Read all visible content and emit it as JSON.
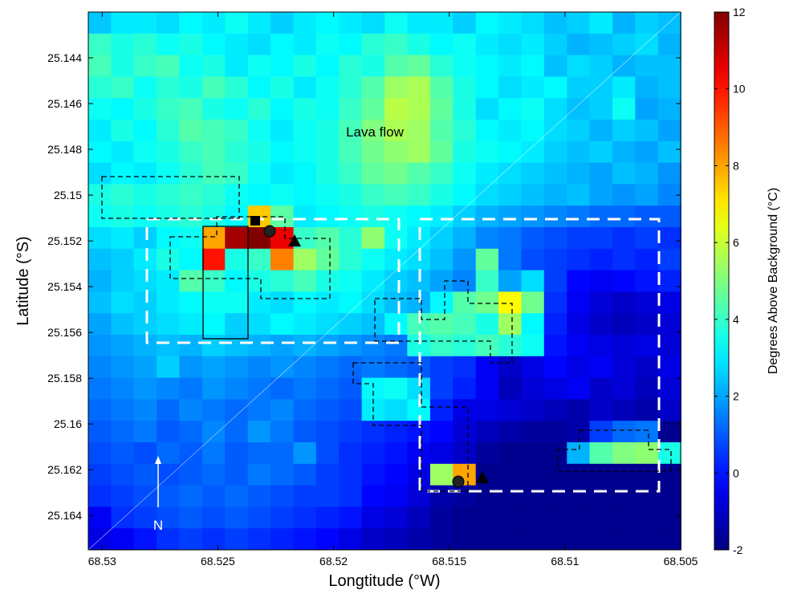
{
  "chart_data": {
    "type": "heatmap",
    "xlabel": "Longtitude (°W)",
    "ylabel": "Latitude (°S)",
    "colorbar_label": "Degrees Above Background (°C)",
    "annotations": [
      "Lava flow",
      "N"
    ],
    "colormap": "jet",
    "xlim": [
      68.5306,
      68.505
    ],
    "ylim": [
      25.142,
      25.1655
    ],
    "xticks": [
      68.53,
      68.525,
      68.52,
      68.515,
      68.51,
      68.505
    ],
    "yticks": [
      25.144,
      25.146,
      25.148,
      25.15,
      25.152,
      25.154,
      25.156,
      25.158,
      25.16,
      25.162,
      25.164
    ],
    "clim": [
      -2,
      12
    ],
    "cticks": [
      -2,
      0,
      2,
      4,
      6,
      8,
      10,
      12
    ],
    "x": [
      68.53011,
      68.52912,
      68.52814,
      68.52715,
      68.52617,
      68.52518,
      68.5242,
      68.52321,
      68.52223,
      68.52124,
      68.52026,
      68.51927,
      68.51829,
      68.5173,
      68.51632,
      68.51533,
      68.51435,
      68.51336,
      68.51238,
      68.51139,
      68.51041,
      68.50942,
      68.50844,
      68.50745,
      68.50647,
      68.50548
    ],
    "y": [
      25.14247,
      25.14341,
      25.14435,
      25.14529,
      25.14623,
      25.14717,
      25.14811,
      25.14905,
      25.14999,
      25.15093,
      25.15187,
      25.15281,
      25.15375,
      25.15469,
      25.15563,
      25.15657,
      25.15751,
      25.15845,
      25.15939,
      25.16033,
      25.16127,
      25.16221,
      25.16315,
      25.16409,
      25.16503
    ],
    "values": [
      [
        2.5,
        3,
        3,
        2.8,
        3.2,
        3,
        3.4,
        3,
        2.6,
        3,
        3.2,
        3,
        2.8,
        3.4,
        3,
        3,
        2.6,
        3.2,
        3,
        2.8,
        2.4,
        2.6,
        3,
        2.2,
        2.6,
        2.4
      ],
      [
        4,
        3.6,
        3.8,
        3.4,
        3.6,
        3.2,
        3,
        2.8,
        3.2,
        3,
        3.4,
        3.2,
        3.8,
        4,
        3.6,
        3.2,
        3.4,
        3,
        2.8,
        3,
        2.6,
        2.2,
        2.4,
        2.6,
        2.8,
        2.2
      ],
      [
        4.2,
        3.6,
        4,
        4.2,
        3.4,
        3.6,
        3,
        3.4,
        3.2,
        3.6,
        3.2,
        3.8,
        3.6,
        4.4,
        4.6,
        3.8,
        3.4,
        3.2,
        3,
        3.2,
        2.4,
        2.8,
        2.6,
        2.2,
        2.4,
        2.4
      ],
      [
        3.8,
        4,
        3.4,
        3.8,
        3.6,
        4.2,
        3.8,
        3.2,
        3.6,
        3,
        3.4,
        3.8,
        4.4,
        5.4,
        5.6,
        4.4,
        3.6,
        3.2,
        2.8,
        3,
        3.2,
        2.6,
        2.6,
        3,
        2.2,
        2.4
      ],
      [
        3.4,
        3.2,
        3.6,
        4,
        4.2,
        3.6,
        3.4,
        3.8,
        3.2,
        3.6,
        3.4,
        4,
        4.6,
        5.8,
        5.6,
        4.6,
        3.6,
        2.8,
        3.2,
        3.4,
        2.8,
        2.4,
        2.6,
        3.4,
        2,
        2.2
      ],
      [
        3,
        3.6,
        3.2,
        3.8,
        4.4,
        4.2,
        4,
        3.4,
        3,
        3.4,
        3.6,
        4.2,
        5,
        5.6,
        5.4,
        4.4,
        3.8,
        3.2,
        3,
        3.2,
        2.8,
        2.6,
        2.2,
        2.6,
        2.4,
        2
      ],
      [
        3.2,
        3,
        3.4,
        3.6,
        4,
        4.2,
        3.8,
        3.6,
        3.2,
        3.4,
        3.6,
        4.2,
        4.8,
        5.2,
        5.4,
        4.6,
        3.6,
        3.4,
        3.2,
        3,
        2.6,
        2.4,
        2.6,
        2.2,
        2,
        2.4
      ],
      [
        2.8,
        3.2,
        3,
        3.4,
        3.8,
        4.2,
        4,
        3.4,
        3,
        3.2,
        3.6,
        4,
        4.6,
        4.8,
        4.4,
        4,
        3.4,
        3,
        2.8,
        2.6,
        2.4,
        2.2,
        2,
        2.4,
        2.2,
        1.8
      ],
      [
        3.6,
        3.8,
        3.6,
        3.8,
        4,
        3.8,
        3.4,
        3.2,
        3.4,
        3.2,
        3.4,
        3.6,
        4,
        4.2,
        4,
        3.6,
        3.2,
        2.8,
        2.6,
        2.4,
        2.2,
        2.4,
        2,
        1.8,
        2,
        1.6
      ],
      [
        3.4,
        3.6,
        3.4,
        3.6,
        3.8,
        3.6,
        3.2,
        7.5,
        4.5,
        3,
        3.2,
        3.4,
        3.6,
        3.4,
        3.2,
        3,
        2.6,
        2.2,
        2,
        1.8,
        1.6,
        1.4,
        1.2,
        1.2,
        1,
        1
      ],
      [
        2.8,
        3,
        2.6,
        3.2,
        3.4,
        8,
        11.5,
        12,
        10.5,
        4,
        4.4,
        3.8,
        5.2,
        3.4,
        3,
        2.6,
        2.2,
        1.6,
        1.4,
        1,
        0.8,
        0.6,
        0.6,
        0.4,
        0.6,
        0.4
      ],
      [
        2.4,
        2.6,
        3,
        3.6,
        3.2,
        10,
        3.6,
        4,
        8.5,
        5.4,
        4.6,
        3.8,
        3.4,
        3,
        2.8,
        2.4,
        1.8,
        4.6,
        1.4,
        0.8,
        0.6,
        0.4,
        0.2,
        0.4,
        0.2,
        0.6
      ],
      [
        2.2,
        2.6,
        2.8,
        3,
        4.4,
        4,
        3.2,
        3.6,
        3.8,
        4.2,
        3.6,
        3.4,
        3,
        2.6,
        2.4,
        2,
        1.6,
        4,
        2,
        2.8,
        0.6,
        -0.2,
        -0.4,
        -0.2,
        0,
        0.2
      ],
      [
        2.4,
        2.8,
        2.6,
        3,
        3.2,
        3.4,
        3.4,
        3,
        2.8,
        3.2,
        3,
        3.2,
        2.8,
        2.4,
        2.2,
        3.2,
        4.4,
        4.8,
        6.8,
        4.8,
        0.4,
        -0.4,
        -0.8,
        -1,
        -0.8,
        -0.6
      ],
      [
        2,
        2.4,
        2.6,
        2.8,
        3,
        3.2,
        2.6,
        2.8,
        3.2,
        3,
        2.8,
        2.6,
        2.4,
        3.2,
        4.2,
        4.4,
        4.2,
        3.6,
        5.4,
        3.2,
        0.2,
        -0.6,
        -1,
        -1.2,
        -1,
        -0.8
      ],
      [
        1.8,
        2,
        2.2,
        2.4,
        2.2,
        2.6,
        2.4,
        2.2,
        2,
        2.2,
        2,
        1.8,
        1.6,
        1.4,
        3.6,
        4,
        3.8,
        4.2,
        3.8,
        3.4,
        0,
        -0.4,
        -0.6,
        -0.8,
        -0.6,
        -0.8
      ],
      [
        1.6,
        1.8,
        2,
        2.6,
        1.8,
        2,
        1.8,
        1.6,
        1.8,
        1.6,
        1.4,
        1.2,
        1.4,
        1.2,
        1,
        0.6,
        0.4,
        -0.4,
        -1,
        -0.6,
        -0.2,
        -0.6,
        -0.4,
        -0.8,
        -1,
        -0.6
      ],
      [
        1.4,
        1.6,
        1.8,
        1.6,
        1.4,
        1.8,
        1.6,
        1.4,
        1.2,
        1.4,
        1.2,
        1,
        3.2,
        3.4,
        2.8,
        0.6,
        0.2,
        -0.4,
        -1.2,
        -0.8,
        -0.6,
        -0.4,
        -1,
        -0.8,
        -1.2,
        -0.8
      ],
      [
        1.2,
        1.4,
        1.6,
        1.2,
        1.6,
        1.4,
        1.2,
        1.4,
        1.6,
        1.2,
        1,
        0.8,
        3,
        2.8,
        3.2,
        0.2,
        -0.6,
        -0.6,
        -0.8,
        -1,
        -1.2,
        -1.4,
        -1,
        -1.2,
        -1.4,
        -1
      ],
      [
        1,
        1.2,
        1.4,
        1,
        1.2,
        1.6,
        1.2,
        1.8,
        1.4,
        1,
        0.8,
        0.6,
        0.4,
        0.2,
        0,
        -0.2,
        -0.8,
        -1.2,
        -1.4,
        -1.6,
        -1.6,
        -1.4,
        0.6,
        1.2,
        1.4,
        -1.8
      ],
      [
        0.8,
        1,
        0.8,
        1.2,
        1,
        1.4,
        1,
        1.2,
        1.2,
        1.8,
        0.8,
        0.4,
        0.2,
        0,
        -0.4,
        -0.6,
        -1,
        -1.6,
        -1.8,
        -1.8,
        -1.8,
        2.2,
        4.4,
        5,
        5.2,
        3.6
      ],
      [
        0.6,
        0.8,
        1,
        0.8,
        1,
        1.2,
        1,
        1.4,
        1.2,
        1,
        0.6,
        0.4,
        0,
        -0.2,
        -0.6,
        5.4,
        8,
        -1.8,
        -1.8,
        -1.8,
        -1.8,
        -1.8,
        -1.8,
        -1.8,
        -1.8,
        -1.8
      ],
      [
        0.4,
        0.6,
        0.8,
        1,
        1.2,
        1,
        1.2,
        1,
        0.8,
        0.6,
        0.6,
        0.4,
        -0.2,
        -0.4,
        -0.8,
        -1.4,
        -1.6,
        -1.8,
        -1.8,
        -1.8,
        -1.8,
        -1.8,
        -1.8,
        -1.8,
        -1.8,
        -1.8
      ],
      [
        -0.4,
        0.4,
        0.6,
        0.8,
        1,
        0.8,
        1,
        0.8,
        0.6,
        0.4,
        0.2,
        0,
        -0.6,
        -0.8,
        -1.2,
        -1.6,
        -1.8,
        -1.8,
        -1.8,
        -1.8,
        -1.8,
        -1.8,
        -1.8,
        -1.8,
        -1.8,
        -1.8
      ],
      [
        -0.6,
        -0.4,
        0,
        0.4,
        0.6,
        0.4,
        0.6,
        0.4,
        0.2,
        0,
        -0.2,
        -0.6,
        -1,
        -1.2,
        -1.4,
        -1.6,
        -1.8,
        -1.8,
        -1.8,
        -1.8,
        -1.8,
        -1.8,
        -1.8,
        -1.8,
        -1.8,
        -1.8
      ]
    ]
  }
}
